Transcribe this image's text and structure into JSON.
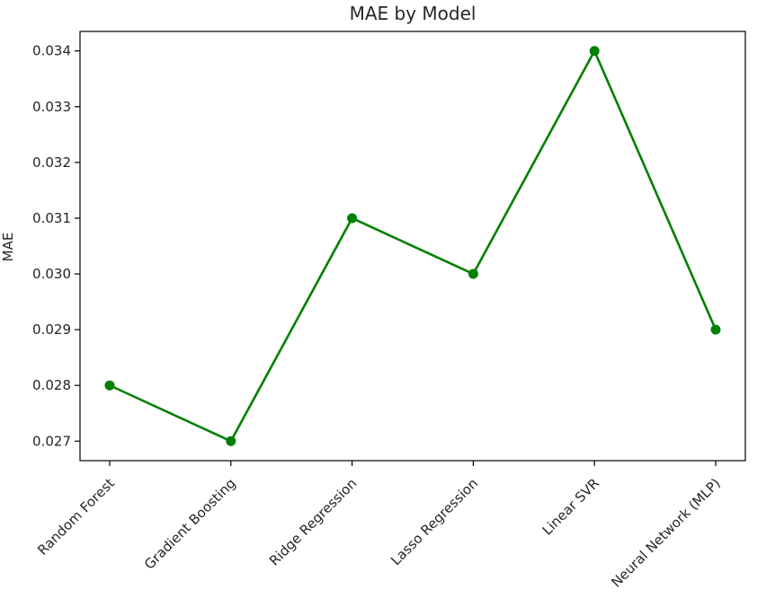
{
  "chart_data": {
    "type": "line",
    "title": "MAE by Model",
    "xlabel": "",
    "ylabel": "MAE",
    "categories": [
      "Random Forest",
      "Gradient Boosting",
      "Ridge Regression",
      "Lasso Regression",
      "Linear SVR",
      "Neural Network (MLP)"
    ],
    "series": [
      {
        "values": [
          0.028,
          0.027,
          0.031,
          0.03,
          0.034,
          0.029
        ],
        "color": "#008000",
        "marker": "circle"
      }
    ],
    "yticks": [
      0.027,
      0.028,
      0.029,
      0.03,
      0.031,
      0.032,
      0.033,
      0.034
    ],
    "ytick_labels": [
      "0.027",
      "0.028",
      "0.029",
      "0.030",
      "0.031",
      "0.032",
      "0.033",
      "0.034"
    ],
    "ylim": [
      0.02665,
      0.03435
    ],
    "grid": false,
    "legend": "none",
    "xtick_rotation_deg": 45
  }
}
